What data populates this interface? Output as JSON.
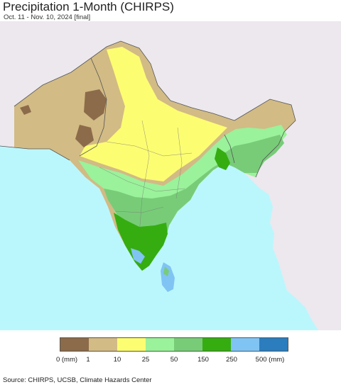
{
  "title": "Precipitation 1-Month (CHIRPS)",
  "subtitle": "Oct. 11 - Nov. 10, 2024 [final]",
  "legend": {
    "colors": [
      "#8c6b4a",
      "#d2bb85",
      "#fdfd72",
      "#9af29a",
      "#78cc78",
      "#35ad10",
      "#80c4f4",
      "#2b7dbe"
    ],
    "ticks": [
      "0 (mm)",
      "1",
      "10",
      "25",
      "50",
      "150",
      "250",
      "500 (mm)"
    ]
  },
  "source": "Source: CHIRPS, UCSB, Climate Hazards Center",
  "colors": {
    "ocean": "#baf7fd",
    "no_data_land": "#ece8ee",
    "borders": "#555555"
  }
}
